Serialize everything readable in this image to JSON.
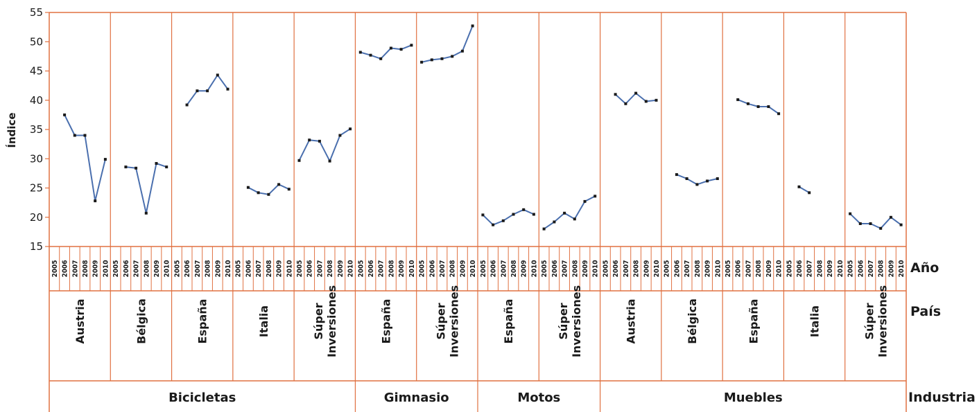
{
  "chart_data": {
    "type": "line",
    "ylabel": "Índice",
    "ylim": [
      15,
      55
    ],
    "yticks": [
      15,
      20,
      25,
      30,
      35,
      40,
      45,
      50,
      55
    ],
    "years": [
      "2005",
      "2006",
      "2007",
      "2008",
      "2009",
      "2010"
    ],
    "row_titles": {
      "year": "Año",
      "country": "País",
      "industry": "Industria"
    },
    "colors": {
      "line": "#4a6fae",
      "marker": "#1a1a1a",
      "grid": "#e07040",
      "frame": "#e07040"
    },
    "panels": [
      {
        "industry": "Bicicletas",
        "country": [
          "Austria"
        ],
        "values": [
          null,
          37.5,
          34,
          34,
          22.8,
          29.9
        ]
      },
      {
        "industry": "Bicicletas",
        "country": [
          "Bélgica"
        ],
        "values": [
          null,
          28.6,
          28.4,
          20.7,
          29.2,
          28.6
        ]
      },
      {
        "industry": "Bicicletas",
        "country": [
          "España"
        ],
        "values": [
          null,
          39.2,
          41.6,
          41.6,
          44.3,
          41.9
        ]
      },
      {
        "industry": "Bicicletas",
        "country": [
          "Italia"
        ],
        "values": [
          null,
          25.1,
          24.2,
          23.9,
          25.6,
          24.8
        ]
      },
      {
        "industry": "Bicicletas",
        "country": [
          "Súper",
          "Inversiones"
        ],
        "values": [
          29.7,
          33.2,
          33,
          29.6,
          34,
          35.1
        ]
      },
      {
        "industry": "Gimnasio",
        "country": [
          "España"
        ],
        "values": [
          48.2,
          47.7,
          47.1,
          48.9,
          48.7,
          49.4
        ]
      },
      {
        "industry": "Gimnasio",
        "country": [
          "Súper",
          "Inversiones"
        ],
        "values": [
          46.5,
          46.9,
          47.1,
          47.5,
          48.4,
          52.7
        ]
      },
      {
        "industry": "Motos",
        "country": [
          "España"
        ],
        "values": [
          20.4,
          18.7,
          19.4,
          20.5,
          21.3,
          20.5
        ]
      },
      {
        "industry": "Motos",
        "country": [
          "Súper",
          "Inversiones"
        ],
        "values": [
          18,
          19.2,
          20.7,
          19.7,
          22.7,
          23.6
        ]
      },
      {
        "industry": "Muebles",
        "country": [
          "Austria"
        ],
        "values": [
          null,
          41,
          39.4,
          41.2,
          39.8,
          40
        ]
      },
      {
        "industry": "Muebles",
        "country": [
          "Bélgica"
        ],
        "values": [
          null,
          27.3,
          26.6,
          25.6,
          26.2,
          26.6
        ]
      },
      {
        "industry": "Muebles",
        "country": [
          "España"
        ],
        "values": [
          null,
          40.1,
          39.4,
          38.9,
          38.9,
          37.7
        ]
      },
      {
        "industry": "Muebles",
        "country": [
          "Italia"
        ],
        "values": [
          null,
          25.2,
          24.2,
          null,
          null,
          null
        ]
      },
      {
        "industry": "Muebles",
        "country": [
          "Súper",
          "Inversiones"
        ],
        "values": [
          20.6,
          18.9,
          18.9,
          18.1,
          20,
          18.7
        ]
      }
    ],
    "industries": [
      {
        "name": "Bicicletas",
        "panels": 5
      },
      {
        "name": "Gimnasio",
        "panels": 2
      },
      {
        "name": "Motos",
        "panels": 2
      },
      {
        "name": "Muebles",
        "panels": 5
      }
    ]
  }
}
